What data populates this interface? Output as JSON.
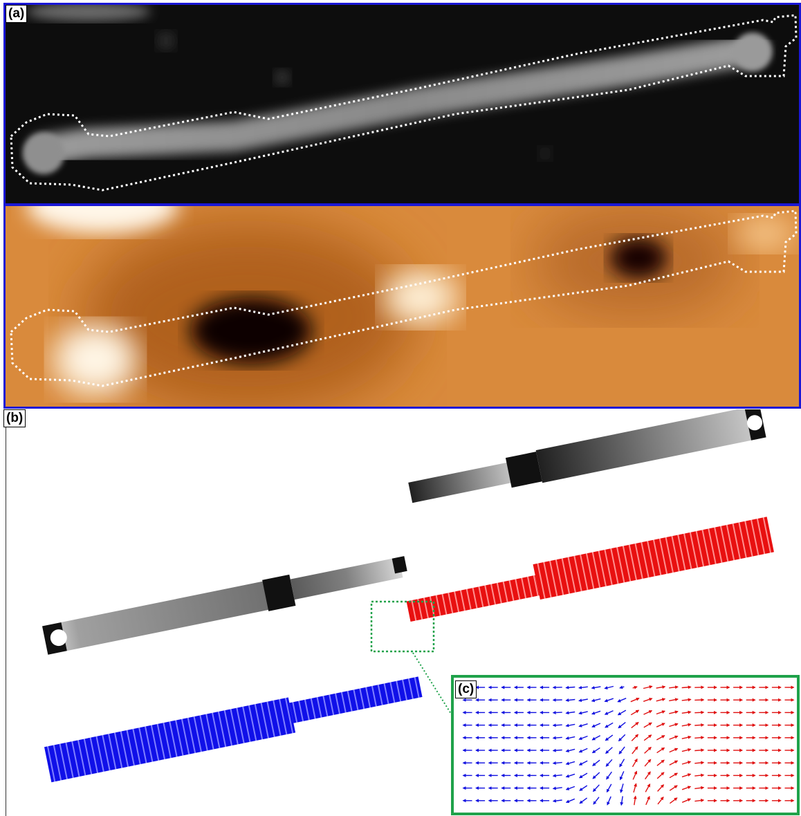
{
  "panels": {
    "a": {
      "label": "(a)"
    },
    "b": {
      "label": "(b)"
    },
    "c": {
      "label": "(c)"
    }
  },
  "colors": {
    "panel_a_border": "#1a17d6",
    "panel_c_border": "#1fa24a",
    "domain_left": "#1010e0",
    "domain_right": "#e01010",
    "afm_base": "#d98a3c",
    "outline": "#ffffff"
  },
  "vector_field": {
    "rows": 10,
    "cols": 26,
    "left_color": "blue",
    "right_color": "red",
    "icon": "arrow-icon"
  }
}
